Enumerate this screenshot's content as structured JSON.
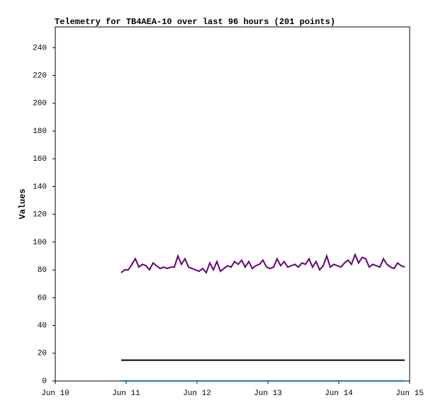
{
  "chart_data": {
    "type": "line",
    "title": "Telemetry for TB4AEA-10 over last 96 hours (201 points)",
    "y_label": "Values",
    "xlim": [
      10,
      15
    ],
    "xticks": [
      {
        "value": 10,
        "label": "Jun 10"
      },
      {
        "value": 11,
        "label": "Jun 11"
      },
      {
        "value": 12,
        "label": "Jun 12"
      },
      {
        "value": 13,
        "label": "Jun 13"
      },
      {
        "value": 14,
        "label": "Jun 14"
      },
      {
        "value": 15,
        "label": "Jun 15"
      }
    ],
    "ylim": [
      0,
      255
    ],
    "yticks": [
      0,
      20,
      40,
      60,
      80,
      100,
      120,
      140,
      160,
      180,
      200,
      220,
      240
    ],
    "grid": false,
    "series": [
      {
        "color": "#660077",
        "x": [
          10.93,
          10.98,
          11.03,
          11.08,
          11.13,
          11.18,
          11.23,
          11.28,
          11.33,
          11.38,
          11.43,
          11.48,
          11.53,
          11.58,
          11.63,
          11.68,
          11.73,
          11.78,
          11.83,
          11.88,
          11.93,
          11.98,
          12.03,
          12.08,
          12.13,
          12.18,
          12.23,
          12.28,
          12.33,
          12.38,
          12.43,
          12.48,
          12.53,
          12.58,
          12.63,
          12.68,
          12.73,
          12.78,
          12.83,
          12.88,
          12.93,
          12.98,
          13.03,
          13.08,
          13.13,
          13.18,
          13.23,
          13.28,
          13.33,
          13.38,
          13.43,
          13.48,
          13.53,
          13.58,
          13.63,
          13.68,
          13.73,
          13.78,
          13.83,
          13.88,
          13.93,
          13.98,
          14.03,
          14.08,
          14.13,
          14.18,
          14.23,
          14.28,
          14.33,
          14.38,
          14.43,
          14.48,
          14.53,
          14.58,
          14.63,
          14.68,
          14.73,
          14.78,
          14.83,
          14.88,
          14.93
        ],
        "values": [
          78,
          80,
          80,
          84,
          88,
          82,
          84,
          83,
          80,
          85,
          83,
          81,
          82,
          81,
          82,
          82,
          90,
          84,
          88,
          82,
          81,
          80,
          79,
          81,
          78,
          85,
          80,
          86,
          79,
          81,
          83,
          82,
          86,
          84,
          87,
          82,
          86,
          81,
          83,
          84,
          87,
          82,
          81,
          82,
          88,
          83,
          86,
          82,
          83,
          84,
          82,
          85,
          84,
          88,
          82,
          86,
          80,
          83,
          90,
          82,
          84,
          83,
          82,
          85,
          87,
          84,
          91,
          85,
          89,
          88,
          82,
          84,
          83,
          82,
          88,
          84,
          82,
          81,
          85,
          83,
          82
        ]
      },
      {
        "color": "#000000",
        "x": [
          10.93,
          14.93
        ],
        "values": [
          15,
          15
        ]
      },
      {
        "color": "#1f77b4",
        "x": [
          10.93,
          14.93
        ],
        "values": [
          0,
          0
        ]
      }
    ]
  }
}
